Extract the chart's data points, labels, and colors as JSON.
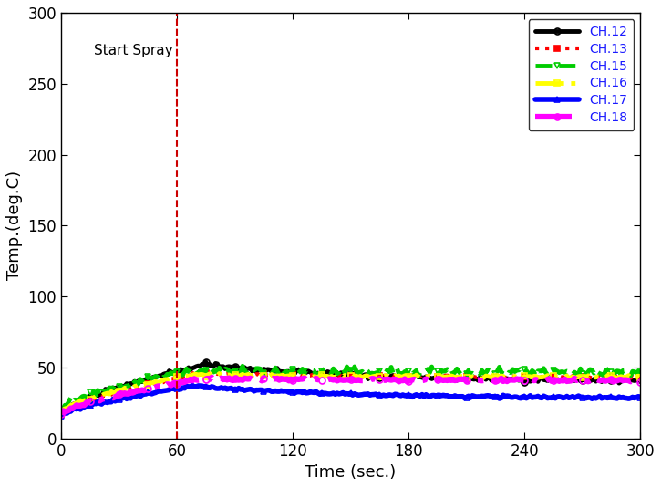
{
  "xlabel": "Time (sec.)",
  "ylabel": "Temp.(deg.C)",
  "xlim": [
    0,
    300
  ],
  "ylim": [
    0,
    300
  ],
  "xticks": [
    0,
    60,
    120,
    180,
    240,
    300
  ],
  "yticks": [
    0,
    50,
    100,
    150,
    200,
    250,
    300
  ],
  "spray_start": 60,
  "spray_label": "Start Spray",
  "channels": [
    "CH.12",
    "CH.13",
    "CH.15",
    "CH.16",
    "CH.17",
    "CH.18"
  ],
  "colors": [
    "#000000",
    "#ff0000",
    "#00cc00",
    "#ffff00",
    "#0000ff",
    "#ff00ff"
  ],
  "linestyles": [
    "-",
    ":",
    "--",
    "-.",
    "-",
    "-."
  ],
  "markers": [
    "o",
    "s",
    "v",
    "s",
    "^",
    "o"
  ],
  "marker_face_colors": [
    "none",
    "#ff0000",
    "none",
    "none",
    "none",
    "none"
  ],
  "linewidths": [
    3.5,
    3.0,
    3.5,
    3.5,
    4.0,
    4.5
  ],
  "background_color": "#ffffff",
  "legend_fontsize": 10,
  "axis_fontsize": 13,
  "tick_fontsize": 12,
  "spray_line_color": "#cc0000",
  "vline_style": "--",
  "marker_size": 5,
  "marker_every": 15,
  "ch12_data": {
    "start": 18,
    "peak": 52,
    "peak_t": 75,
    "settle": 40
  },
  "ch13_data": {
    "start": 17,
    "peak": 46,
    "peak_t": 72,
    "settle": 43
  },
  "ch15_data": {
    "start": 20,
    "peak": 48,
    "peak_t": 65,
    "settle": 47
  },
  "ch16_data": {
    "start": 19,
    "peak": 45,
    "peak_t": 68,
    "settle": 43
  },
  "ch17_data": {
    "start": 16,
    "peak": 37,
    "peak_t": 70,
    "settle": 28
  },
  "ch18_data": {
    "start": 17,
    "peak": 42,
    "peak_t": 73,
    "settle": 41
  }
}
